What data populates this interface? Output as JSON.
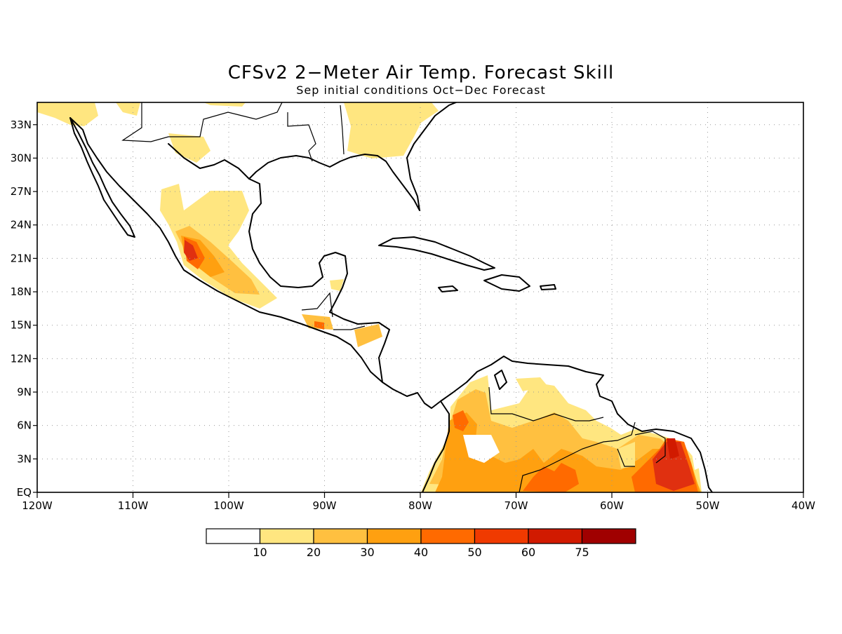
{
  "map": {
    "title": "CFSv2 2−Meter Air Temp. Forecast Skill",
    "subtitle": "Sep initial conditions  Oct−Dec Forecast",
    "lon_range": [
      -120,
      -40
    ],
    "lat_range": [
      0,
      35
    ],
    "x_ticks": [
      "120W",
      "110W",
      "100W",
      "90W",
      "80W",
      "70W",
      "60W",
      "50W",
      "40W"
    ],
    "y_ticks": [
      "EQ",
      "3N",
      "6N",
      "9N",
      "12N",
      "15N",
      "18N",
      "21N",
      "24N",
      "27N",
      "30N",
      "33N"
    ],
    "grid": "dotted"
  },
  "colorbar": {
    "labels": [
      "10",
      "20",
      "30",
      "40",
      "50",
      "60",
      "75"
    ],
    "colors": [
      "#ffffff",
      "#ffe680",
      "#ffc040",
      "#ffa010",
      "#ff6a00",
      "#f03a00",
      "#d11a00",
      "#a00000"
    ]
  }
}
